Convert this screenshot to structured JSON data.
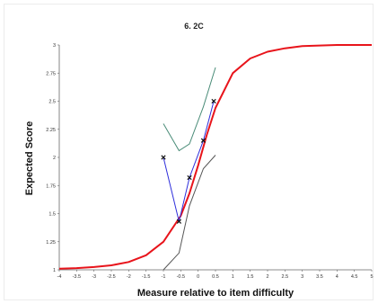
{
  "chart_data": {
    "type": "line",
    "title": "6. 2C",
    "xlabel": "Measure relative to item difficulty",
    "ylabel": "Expected Score",
    "xlim": [
      -4,
      5
    ],
    "ylim": [
      1,
      3
    ],
    "x_ticks": [
      "-4",
      "-3.5",
      "-3",
      "-2.5",
      "-2",
      "-1.5",
      "-1",
      "-0.5",
      "0",
      "0.5",
      "1",
      "1.5",
      "2",
      "2.5",
      "3",
      "3.5",
      "4",
      "4.5",
      "5"
    ],
    "y_ticks": [
      "1",
      "1.25",
      "1.5",
      "1.75",
      "2",
      "2.25",
      "2.5",
      "2.75",
      "3"
    ],
    "grid": false,
    "colors": {
      "model": "#e8141b",
      "observed": "#2e2edb",
      "upper_band": "#4a8c78",
      "lower_band": "#555555",
      "marker": "#111111"
    },
    "series": [
      {
        "role": "model_curve",
        "x": [
          -4,
          -3.5,
          -3,
          -2.5,
          -2,
          -1.5,
          -1,
          -0.5,
          -0.25,
          0,
          0.25,
          0.5,
          1,
          1.5,
          2,
          2.5,
          3,
          3.5,
          4,
          4.5,
          5
        ],
        "y": [
          1.01,
          1.015,
          1.025,
          1.04,
          1.07,
          1.13,
          1.25,
          1.48,
          1.68,
          1.93,
          2.2,
          2.44,
          2.75,
          2.88,
          2.94,
          2.97,
          2.99,
          2.995,
          3.0,
          3.0,
          3.0
        ]
      },
      {
        "role": "observed",
        "x": [
          -1.0,
          -0.55,
          -0.25,
          0.15,
          0.45
        ],
        "y": [
          2.0,
          1.43,
          1.82,
          2.15,
          2.5
        ]
      },
      {
        "role": "upper_band",
        "x": [
          -1.0,
          -0.55,
          -0.25,
          0.15,
          0.5
        ],
        "y": [
          2.3,
          2.06,
          2.12,
          2.45,
          2.8
        ]
      },
      {
        "role": "lower_band",
        "x": [
          -1.0,
          -0.55,
          -0.25,
          0.15,
          0.5
        ],
        "y": [
          1.0,
          1.15,
          1.57,
          1.9,
          2.02
        ]
      }
    ]
  }
}
